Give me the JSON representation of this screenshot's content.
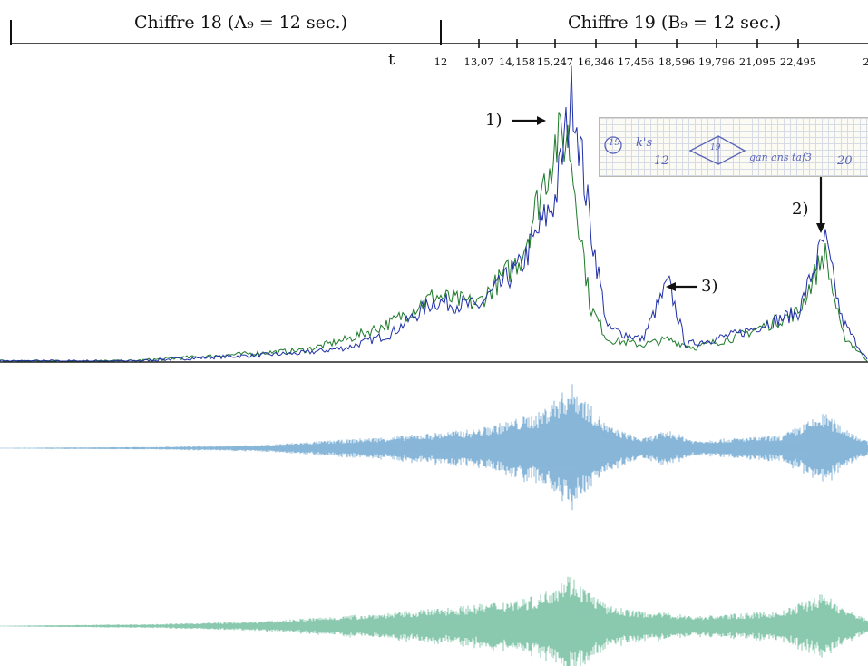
{
  "header": {
    "section_a_label": "Chiffre 18 (A₉ = 12 sec.)",
    "section_b_label": "Chiffre 19 (B₉ = 12 sec.)",
    "time_axis_label": "t"
  },
  "chart_data": [
    {
      "type": "line",
      "title": "",
      "xlabel": "t",
      "ylabel": "",
      "x_ticks": [
        "12",
        "13,07",
        "14,158",
        "15,247",
        "16,346",
        "17,456",
        "18,596",
        "19,796",
        "21,095",
        "22,495",
        "2"
      ],
      "grid": false,
      "legend": "none",
      "series": [
        {
          "color": "#1f2fa8",
          "description_points": [
            [
              0,
              0
            ],
            [
              0.15,
              0
            ],
            [
              0.25,
              0.015
            ],
            [
              0.35,
              0.03
            ],
            [
              0.4,
              0.05
            ],
            [
              0.45,
              0.1
            ],
            [
              0.5,
              0.22
            ],
            [
              0.55,
              0.2
            ],
            [
              0.6,
              0.35
            ],
            [
              0.64,
              0.6
            ],
            [
              0.66,
              1.0
            ],
            [
              0.68,
              0.5
            ],
            [
              0.7,
              0.12
            ],
            [
              0.74,
              0.08
            ],
            [
              0.77,
              0.29
            ],
            [
              0.79,
              0.06
            ],
            [
              0.85,
              0.1
            ],
            [
              0.92,
              0.18
            ],
            [
              0.95,
              0.45
            ],
            [
              0.97,
              0.15
            ],
            [
              1.0,
              0.0
            ]
          ]
        },
        {
          "color": "#1d7a2a",
          "description_points": [
            [
              0,
              0
            ],
            [
              0.15,
              0
            ],
            [
              0.25,
              0.02
            ],
            [
              0.35,
              0.04
            ],
            [
              0.4,
              0.08
            ],
            [
              0.45,
              0.14
            ],
            [
              0.5,
              0.24
            ],
            [
              0.55,
              0.21
            ],
            [
              0.6,
              0.38
            ],
            [
              0.64,
              0.8
            ],
            [
              0.655,
              0.82
            ],
            [
              0.68,
              0.2
            ],
            [
              0.7,
              0.08
            ],
            [
              0.74,
              0.06
            ],
            [
              0.77,
              0.08
            ],
            [
              0.8,
              0.05
            ],
            [
              0.85,
              0.09
            ],
            [
              0.92,
              0.18
            ],
            [
              0.95,
              0.4
            ],
            [
              0.97,
              0.1
            ],
            [
              1.0,
              0.0
            ]
          ]
        }
      ]
    },
    {
      "type": "area",
      "title": "",
      "color": "#3a86bf",
      "envelope": [
        [
          0,
          0.005
        ],
        [
          0.18,
          0.02
        ],
        [
          0.3,
          0.05
        ],
        [
          0.45,
          0.18
        ],
        [
          0.55,
          0.3
        ],
        [
          0.62,
          0.55
        ],
        [
          0.66,
          1.0
        ],
        [
          0.7,
          0.35
        ],
        [
          0.74,
          0.15
        ],
        [
          0.77,
          0.28
        ],
        [
          0.8,
          0.12
        ],
        [
          0.9,
          0.2
        ],
        [
          0.95,
          0.55
        ],
        [
          0.97,
          0.35
        ],
        [
          1.0,
          0.1
        ]
      ]
    },
    {
      "type": "area",
      "title": "",
      "color": "#3ba579",
      "envelope": [
        [
          0,
          0.005
        ],
        [
          0.18,
          0.03
        ],
        [
          0.3,
          0.07
        ],
        [
          0.45,
          0.2
        ],
        [
          0.55,
          0.32
        ],
        [
          0.62,
          0.45
        ],
        [
          0.655,
          0.78
        ],
        [
          0.7,
          0.3
        ],
        [
          0.74,
          0.22
        ],
        [
          0.77,
          0.2
        ],
        [
          0.8,
          0.15
        ],
        [
          0.9,
          0.22
        ],
        [
          0.95,
          0.5
        ],
        [
          0.97,
          0.28
        ],
        [
          1.0,
          0.1
        ]
      ]
    }
  ],
  "annotations": {
    "one": "1)",
    "two": "2)",
    "three": "3)"
  },
  "note_image": {
    "circle_text": "19",
    "text_a": "k's",
    "text_b": "12",
    "diamond_text": "19",
    "text_c": "gan ans taf3",
    "text_d": "20"
  }
}
